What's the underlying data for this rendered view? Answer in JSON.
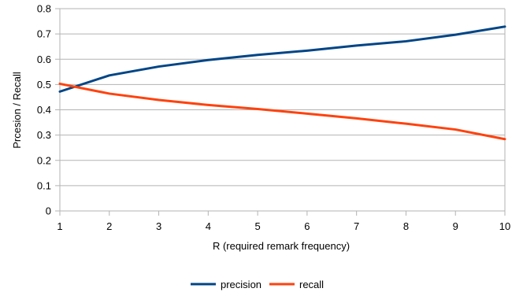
{
  "chart_data": {
    "type": "line",
    "title": "",
    "xlabel": "R (required remark frequency)",
    "ylabel": "Prcesion / Recall",
    "x": [
      1,
      2,
      3,
      4,
      5,
      6,
      7,
      8,
      9,
      10
    ],
    "xlim": [
      1,
      10
    ],
    "ylim": [
      0,
      0.8
    ],
    "y_ticks": [
      "0",
      "0.1",
      "0.2",
      "0.3",
      "0.4",
      "0.5",
      "0.6",
      "0.7",
      "0.8"
    ],
    "x_ticks": [
      "1",
      "2",
      "3",
      "4",
      "5",
      "6",
      "7",
      "8",
      "9",
      "10"
    ],
    "grid": true,
    "legend_position": "bottom",
    "series": [
      {
        "name": "precision",
        "color": "#004586",
        "values": [
          0.472,
          0.536,
          0.571,
          0.597,
          0.617,
          0.634,
          0.654,
          0.671,
          0.697,
          0.729
        ]
      },
      {
        "name": "recall",
        "color": "#ff420e",
        "values": [
          0.503,
          0.464,
          0.439,
          0.419,
          0.403,
          0.385,
          0.366,
          0.345,
          0.322,
          0.284
        ]
      }
    ]
  }
}
